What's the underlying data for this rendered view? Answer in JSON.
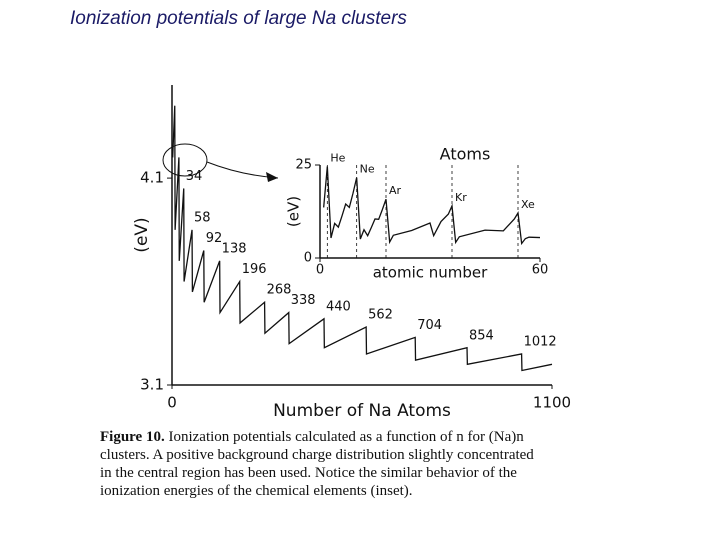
{
  "title": "Ionization potentials of large Na clusters",
  "chart_data": [
    {
      "type": "line",
      "xlabel": "Number of Na Atoms",
      "ylabel": "(eV)",
      "xlim": [
        0,
        1100
      ],
      "xticks": [
        0,
        1100
      ],
      "ylim": [
        3.1,
        4.55
      ],
      "yticks": [
        3.1,
        4.1
      ],
      "x": [
        2,
        8,
        9,
        20,
        21,
        34,
        35,
        58,
        59,
        92,
        93,
        138,
        139,
        196,
        197,
        268,
        269,
        338,
        339,
        440,
        441,
        562,
        563,
        704,
        705,
        854,
        855,
        1012,
        1013,
        1100
      ],
      "series": [
        {
          "color": "#111111",
          "values": [
            4.2,
            4.45,
            3.85,
            4.2,
            3.7,
            4.05,
            3.6,
            3.85,
            3.55,
            3.75,
            3.5,
            3.7,
            3.45,
            3.6,
            3.4,
            3.5,
            3.35,
            3.45,
            3.3,
            3.42,
            3.28,
            3.38,
            3.25,
            3.33,
            3.22,
            3.28,
            3.2,
            3.25,
            3.17,
            3.2
          ]
        }
      ],
      "point_labels": [
        null,
        null,
        null,
        null,
        null,
        34,
        null,
        58,
        null,
        92,
        null,
        138,
        null,
        196,
        null,
        268,
        null,
        338,
        null,
        440,
        null,
        562,
        null,
        704,
        null,
        854,
        null,
        1012,
        null,
        null
      ]
    },
    {
      "type": "line",
      "title": "Atoms",
      "xlabel": "atomic number",
      "ylabel": "(eV)",
      "xlim": [
        0,
        60
      ],
      "xticks": [
        0,
        60
      ],
      "ylim": [
        0,
        25
      ],
      "yticks": [
        0,
        25
      ],
      "x": [
        1,
        2,
        3,
        4,
        5,
        6,
        7,
        8,
        9,
        10,
        11,
        12,
        13,
        14,
        15,
        16,
        17,
        18,
        19,
        20,
        25,
        30,
        31,
        33,
        35,
        36,
        37,
        38,
        45,
        50,
        53,
        54,
        55,
        56,
        57,
        60
      ],
      "series": [
        {
          "color": "#111111",
          "values": [
            13.6,
            24.6,
            5.4,
            9.3,
            8.3,
            11.3,
            14.5,
            13.6,
            17.4,
            21.6,
            5.1,
            7.6,
            6.0,
            8.2,
            10.5,
            10.4,
            13.0,
            15.8,
            4.3,
            6.1,
            7.4,
            9.4,
            6.0,
            9.8,
            11.8,
            14.0,
            4.2,
            5.7,
            7.5,
            7.3,
            10.5,
            12.1,
            3.9,
            5.2,
            5.6,
            5.5
          ]
        }
      ],
      "point_labels": [
        null,
        "He",
        null,
        null,
        null,
        null,
        null,
        null,
        null,
        "Ne",
        null,
        null,
        null,
        null,
        null,
        null,
        null,
        "Ar",
        null,
        null,
        null,
        null,
        null,
        null,
        null,
        "Kr",
        null,
        null,
        null,
        null,
        null,
        "Xe",
        null,
        null,
        null,
        null
      ]
    }
  ],
  "caption": {
    "label": "Figure 10.",
    "lines": [
      "Ionization potentials calculated as a function of n for (Na)n",
      "clusters.  A positive background charge distribution slightly concentrated",
      "in the central region has been used.  Notice the similar behavior of the",
      "ionization energies of the chemical elements (inset)."
    ]
  }
}
